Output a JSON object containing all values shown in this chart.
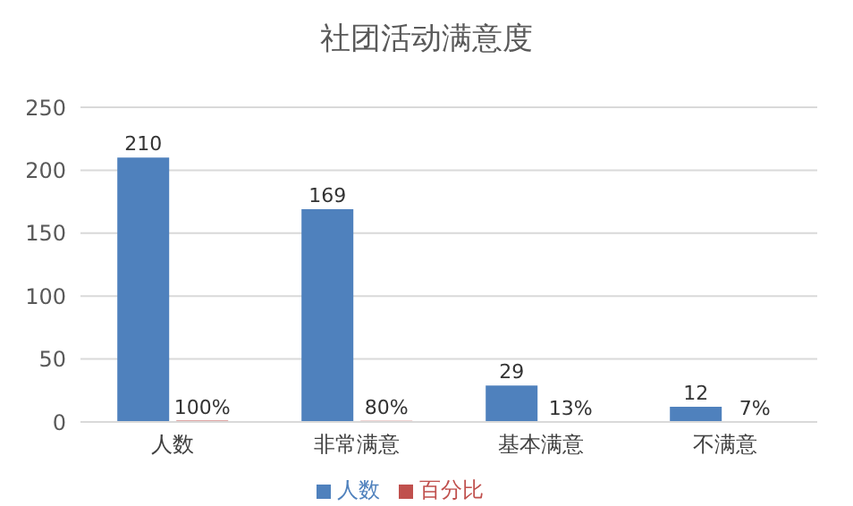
{
  "chart_data": {
    "type": "bar",
    "title": "社团活动满意度",
    "categories": [
      "人数",
      "非常满意",
      "基本满意",
      "不满意"
    ],
    "series": [
      {
        "name": "人数",
        "color": "#4f81bd",
        "values": [
          210,
          169,
          29,
          12
        ],
        "value_labels": [
          "210",
          "169",
          "29",
          "12"
        ]
      },
      {
        "name": "百分比",
        "color": "#c0504d",
        "values": [
          1,
          0.8,
          0.13,
          0.07
        ],
        "value_labels": [
          "100%",
          "80%",
          "13%",
          "7%"
        ]
      }
    ],
    "ylim": [
      0,
      250
    ],
    "yticks": [
      0,
      50,
      100,
      150,
      200,
      250
    ],
    "grid": "y",
    "legend": "bottom"
  }
}
